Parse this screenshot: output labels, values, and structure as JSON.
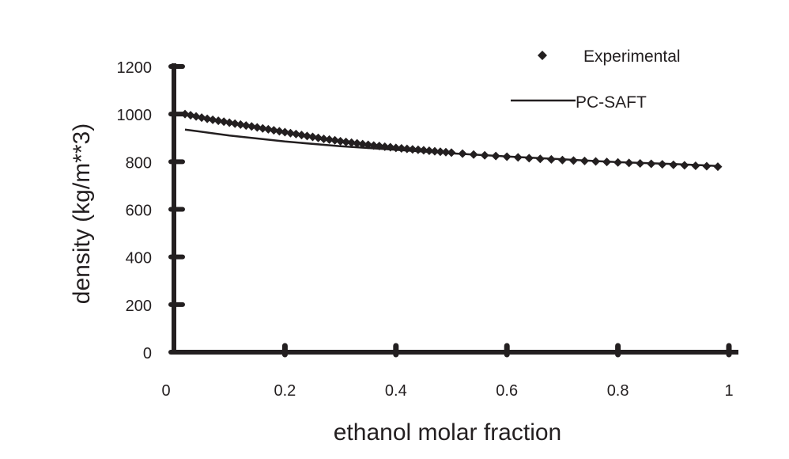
{
  "chart_data": {
    "type": "scatter",
    "title": "",
    "xlabel": "ethanol molar fraction",
    "ylabel": "density (kg/m**3)",
    "xlim": [
      0,
      1
    ],
    "ylim": [
      0,
      1200
    ],
    "x_ticks": [
      "0",
      "0.2",
      "0.4",
      "0.6",
      "0.8",
      "1"
    ],
    "y_ticks": [
      "0",
      "200",
      "400",
      "600",
      "800",
      "1000",
      "1200"
    ],
    "grid": false,
    "legend_position": "top-right",
    "series": [
      {
        "name": "Experimental",
        "kind": "markers",
        "marker": "diamond",
        "x": [
          0.02,
          0.03,
          0.04,
          0.05,
          0.06,
          0.07,
          0.08,
          0.09,
          0.1,
          0.11,
          0.12,
          0.13,
          0.14,
          0.15,
          0.16,
          0.17,
          0.18,
          0.19,
          0.2,
          0.21,
          0.22,
          0.23,
          0.24,
          0.25,
          0.26,
          0.27,
          0.28,
          0.29,
          0.3,
          0.31,
          0.32,
          0.33,
          0.34,
          0.35,
          0.36,
          0.37,
          0.38,
          0.39,
          0.4,
          0.41,
          0.42,
          0.43,
          0.44,
          0.45,
          0.46,
          0.47,
          0.48,
          0.49,
          0.5,
          0.52,
          0.54,
          0.56,
          0.58,
          0.6,
          0.62,
          0.64,
          0.66,
          0.68,
          0.7,
          0.72,
          0.74,
          0.76,
          0.78,
          0.8,
          0.82,
          0.84,
          0.86,
          0.88,
          0.9,
          0.92,
          0.94,
          0.96,
          0.98
        ],
        "y": [
          1000,
          995,
          990,
          985,
          980,
          976,
          972,
          968,
          964,
          960,
          956,
          952,
          948,
          944,
          940,
          936,
          932,
          928,
          924,
          920,
          916,
          912,
          908,
          904,
          900,
          896,
          893,
          890,
          886,
          883,
          880,
          877,
          874,
          871,
          868,
          866,
          863,
          861,
          858,
          856,
          854,
          852,
          850,
          848,
          846,
          844,
          842,
          840,
          838,
          834,
          830,
          827,
          824,
          821,
          818,
          815,
          812,
          810,
          807,
          805,
          803,
          801,
          799,
          797,
          795,
          793,
          791,
          789,
          787,
          785,
          783,
          781,
          779
        ]
      },
      {
        "name": "PC-SAFT",
        "kind": "line",
        "x": [
          0.02,
          0.1,
          0.2,
          0.3,
          0.4,
          0.5,
          0.6,
          0.7,
          0.8,
          0.9,
          0.98
        ],
        "y": [
          935,
          910,
          885,
          865,
          850,
          835,
          822,
          810,
          798,
          790,
          782
        ]
      }
    ]
  }
}
